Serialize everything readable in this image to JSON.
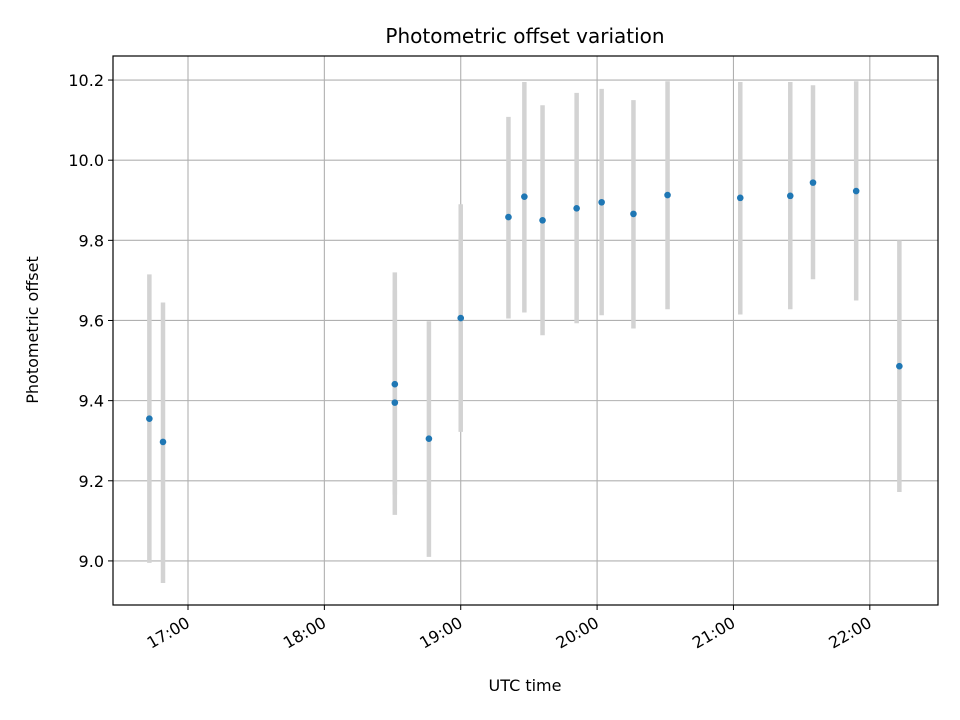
{
  "chart_data": {
    "type": "scatter",
    "title": "Photometric offset variation",
    "xlabel": "UTC time",
    "ylabel": "Photometric offset",
    "x_ticks": [
      "17:00",
      "18:00",
      "19:00",
      "20:00",
      "21:00",
      "22:00"
    ],
    "y_ticks": [
      "9.0",
      "9.2",
      "9.4",
      "9.6",
      "9.8",
      "10.0",
      "10.2"
    ],
    "xlim": [
      "16:27",
      "22:30"
    ],
    "ylim": [
      8.89,
      10.26
    ],
    "grid": true,
    "colors": {
      "point": "#1f77b4",
      "errorbar": "#d3d3d3",
      "grid": "#b0b0b0"
    },
    "points": [
      {
        "t": "16:43",
        "y": 9.355,
        "low": 8.995,
        "high": 9.715
      },
      {
        "t": "16:49",
        "y": 9.297,
        "low": 8.945,
        "high": 9.645
      },
      {
        "t": "18:31",
        "y": 9.441,
        "low": 9.165,
        "high": 9.72
      },
      {
        "t": "18:31",
        "y": 9.395,
        "low": 9.115,
        "high": 9.675
      },
      {
        "t": "18:46",
        "y": 9.305,
        "low": 9.01,
        "high": 9.598
      },
      {
        "t": "19:00",
        "y": 9.606,
        "low": 9.322,
        "high": 9.89
      },
      {
        "t": "19:21",
        "y": 9.858,
        "low": 9.605,
        "high": 10.108
      },
      {
        "t": "19:28",
        "y": 9.909,
        "low": 9.62,
        "high": 10.195
      },
      {
        "t": "19:36",
        "y": 9.85,
        "low": 9.563,
        "high": 10.137
      },
      {
        "t": "19:51",
        "y": 9.88,
        "low": 9.593,
        "high": 10.168
      },
      {
        "t": "20:02",
        "y": 9.895,
        "low": 9.613,
        "high": 10.178
      },
      {
        "t": "20:16",
        "y": 9.866,
        "low": 9.58,
        "high": 10.15
      },
      {
        "t": "20:31",
        "y": 9.913,
        "low": 9.628,
        "high": 10.197
      },
      {
        "t": "21:03",
        "y": 9.906,
        "low": 9.615,
        "high": 10.195
      },
      {
        "t": "21:25",
        "y": 9.911,
        "low": 9.628,
        "high": 10.195
      },
      {
        "t": "21:35",
        "y": 9.944,
        "low": 9.703,
        "high": 10.187
      },
      {
        "t": "21:54",
        "y": 9.923,
        "low": 9.65,
        "high": 10.197
      },
      {
        "t": "22:13",
        "y": 9.486,
        "low": 9.172,
        "high": 9.8
      }
    ]
  }
}
